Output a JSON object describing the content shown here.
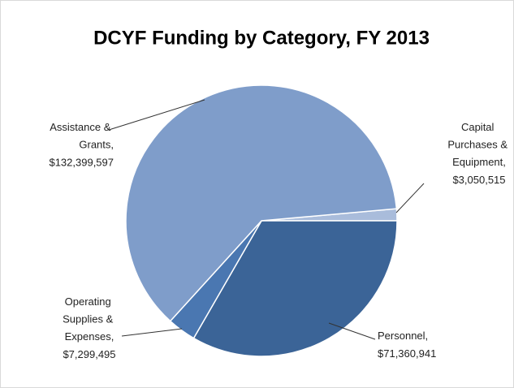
{
  "chart_data": {
    "type": "pie",
    "title": "DCYF Funding by Category, FY 2013",
    "categories": [
      "Capital Purchases & Equipment,",
      "Personnel,",
      "Operating Supplies & Expenses,",
      "Assistance & Grants,"
    ],
    "values": [
      3050515,
      71360941,
      7299495,
      132399597
    ],
    "value_labels": [
      "$3,050,515",
      "$71,360,941",
      "$7,299,495",
      "$132,399,597"
    ],
    "colors": [
      "#a9bcdb",
      "#3b6497",
      "#4a77b1",
      "#7f9dca"
    ]
  }
}
